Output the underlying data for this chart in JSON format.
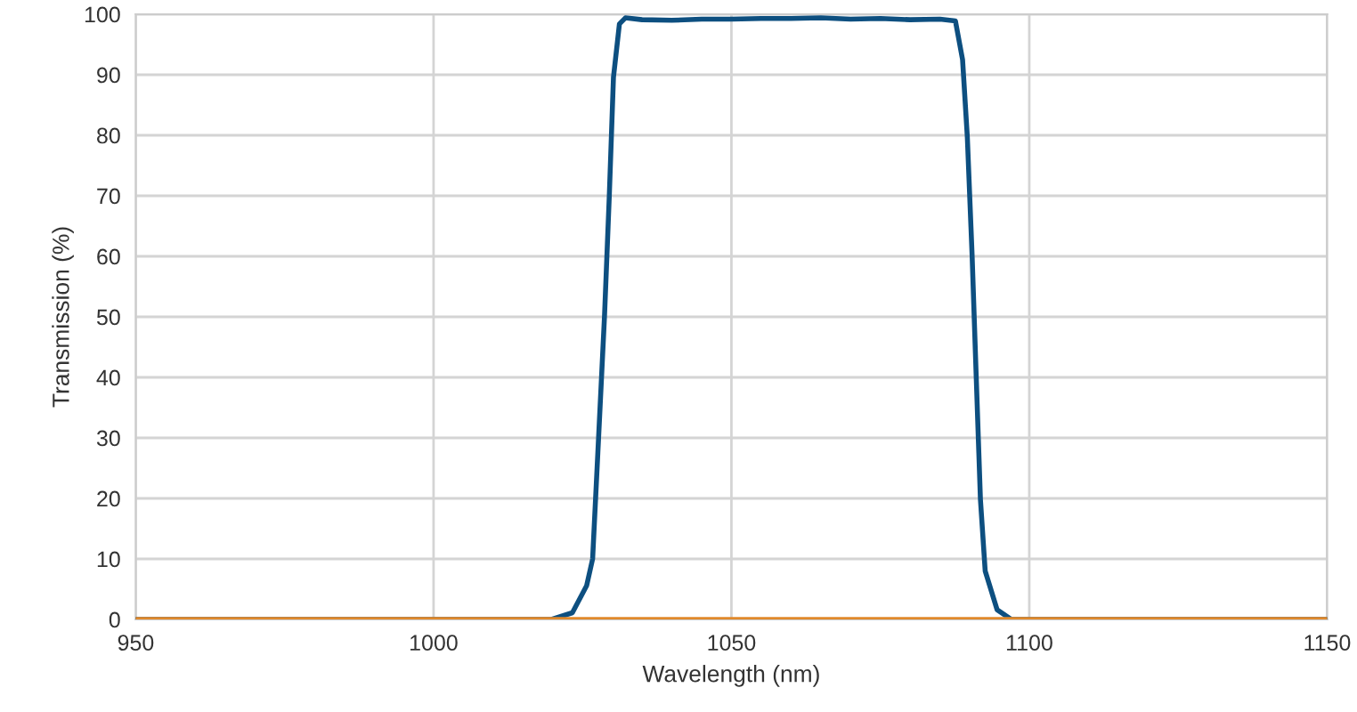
{
  "chart_data": {
    "type": "line",
    "xlabel": "Wavelength (nm)",
    "ylabel": "Transmission (%)",
    "xlim": [
      950,
      1150
    ],
    "xticks": [
      950,
      1000,
      1050,
      1100,
      1150
    ],
    "ylim": [
      0,
      100
    ],
    "yticks": [
      0,
      10,
      20,
      30,
      40,
      50,
      60,
      70,
      80,
      90,
      100
    ],
    "grid": true,
    "marker": "none",
    "line_style": "solid",
    "series": [
      {
        "color": "#0d4f80",
        "x": [
          950,
          1019.8,
          1023.3,
          1025.7,
          1026.7,
          1027.7,
          1028.7,
          1029.5,
          1030.2,
          1031.2,
          1032.2,
          1035,
          1040,
          1045,
          1050,
          1055,
          1060,
          1065,
          1070,
          1075,
          1080,
          1085,
          1087.6,
          1088.8,
          1089.6,
          1090.4,
          1091.1,
          1091.8,
          1092.6,
          1094.6,
          1097,
          1150
        ],
        "values": [
          0,
          0,
          1.1,
          5.6,
          10,
          30,
          50.2,
          70,
          89.6,
          98.4,
          99.4,
          99.1,
          99.0,
          99.2,
          99.2,
          99.3,
          99.3,
          99.4,
          99.2,
          99.3,
          99.1,
          99.2,
          98.9,
          92.5,
          79.7,
          60.2,
          39.9,
          19.8,
          8,
          1.6,
          0,
          0
        ]
      },
      {
        "color": "#e0892b",
        "x": [
          950,
          1150
        ],
        "values": [
          0,
          0
        ]
      }
    ]
  }
}
